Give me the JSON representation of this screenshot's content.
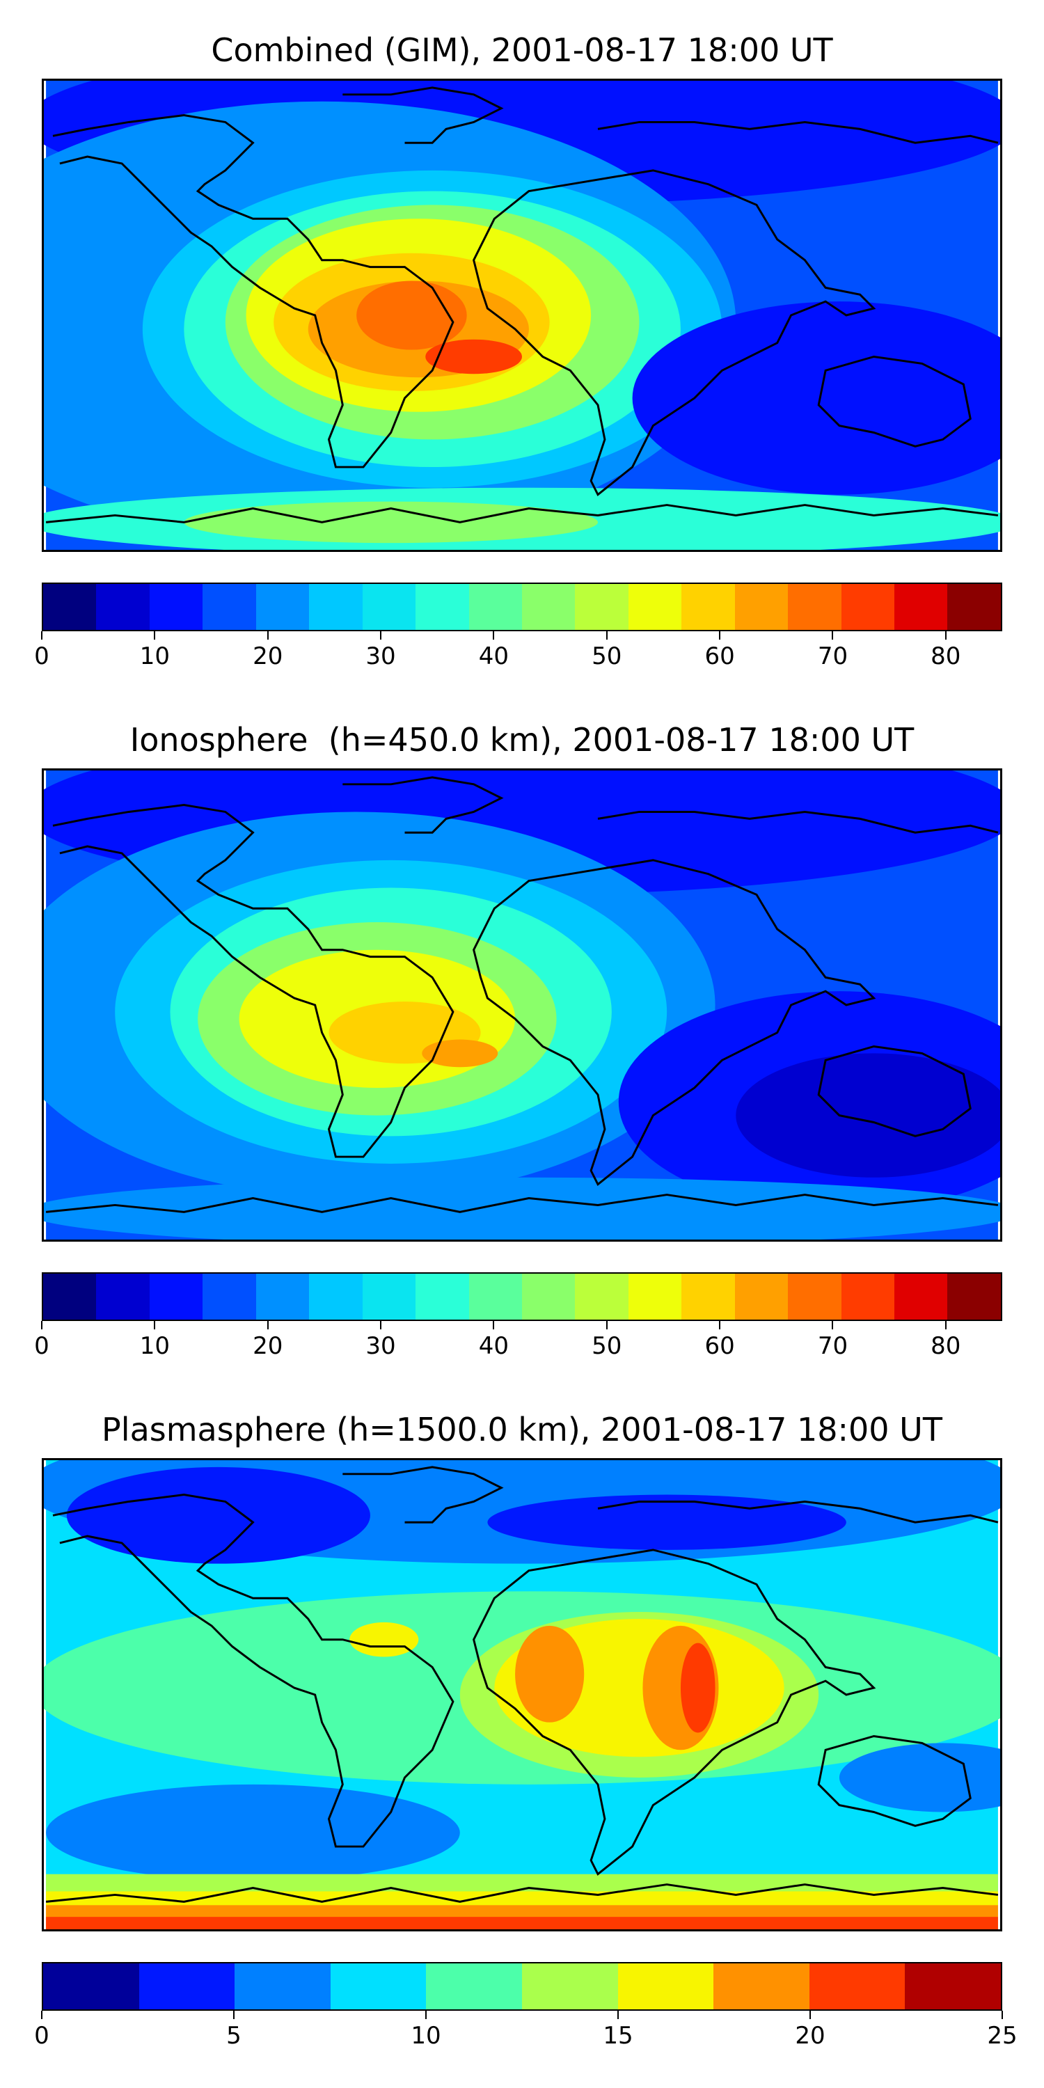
{
  "panels": [
    {
      "title": "Combined (GIM), 2001-08-17 18:00 UT",
      "colorbar": {
        "ticks": [
          0,
          10,
          20,
          30,
          40,
          50,
          60,
          70,
          80
        ],
        "min": 0,
        "max": 85,
        "step": 5,
        "colors": [
          "#00007f",
          "#0000d0",
          "#0010ff",
          "#0050ff",
          "#0090ff",
          "#00c8ff",
          "#0ae4f0",
          "#2affd8",
          "#5aff9c",
          "#8aff6a",
          "#bbff3a",
          "#eeff0a",
          "#ffd200",
          "#ffa000",
          "#ff6e00",
          "#ff3c00",
          "#e00000",
          "#8b0000"
        ]
      }
    },
    {
      "title": "Ionosphere  (h=450.0 km), 2001-08-17 18:00 UT",
      "colorbar": {
        "ticks": [
          0,
          10,
          20,
          30,
          40,
          50,
          60,
          70,
          80
        ],
        "min": 0,
        "max": 85,
        "step": 5,
        "colors": [
          "#00007f",
          "#0000d0",
          "#0010ff",
          "#0050ff",
          "#0090ff",
          "#00c8ff",
          "#0ae4f0",
          "#2affd8",
          "#5aff9c",
          "#8aff6a",
          "#bbff3a",
          "#eeff0a",
          "#ffd200",
          "#ffa000",
          "#ff6e00",
          "#ff3c00",
          "#e00000",
          "#8b0000"
        ]
      }
    },
    {
      "title": "Plasmasphere (h=1500.0 km), 2001-08-17 18:00 UT",
      "colorbar": {
        "ticks": [
          0,
          5,
          10,
          15,
          20,
          25
        ],
        "min": 0,
        "max": 25,
        "step": 2.5,
        "colors": [
          "#00009a",
          "#0018ff",
          "#0080ff",
          "#00e0ff",
          "#4cffaa",
          "#aaff4c",
          "#f8f500",
          "#ff9100",
          "#ff3a00",
          "#b00000"
        ]
      }
    }
  ]
}
